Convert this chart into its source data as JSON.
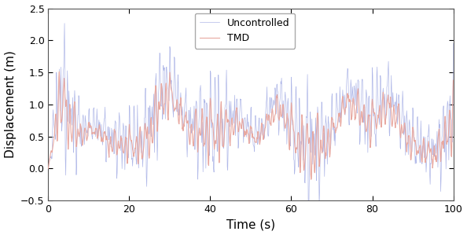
{
  "xlabel": "Time (s)",
  "ylabel": "Displacement (m)",
  "xlim": [
    0,
    100
  ],
  "ylim": [
    -0.5,
    2.5
  ],
  "xticks": [
    0,
    20,
    40,
    60,
    80,
    100
  ],
  "yticks": [
    -0.5,
    0.0,
    0.5,
    1.0,
    1.5,
    2.0,
    2.5
  ],
  "legend_labels": [
    "Uncontrolled",
    "TMD"
  ],
  "uncontrolled_color": "#b0b8e8",
  "tmd_color": "#e8a8a0",
  "linewidth_uncontrolled": 0.5,
  "linewidth_tmd": 0.8,
  "dt": 0.1,
  "duration": 100,
  "figsize": [
    5.94,
    2.99
  ],
  "dpi": 100,
  "tick_fontsize": 9,
  "label_fontsize": 11,
  "legend_fontsize": 9
}
